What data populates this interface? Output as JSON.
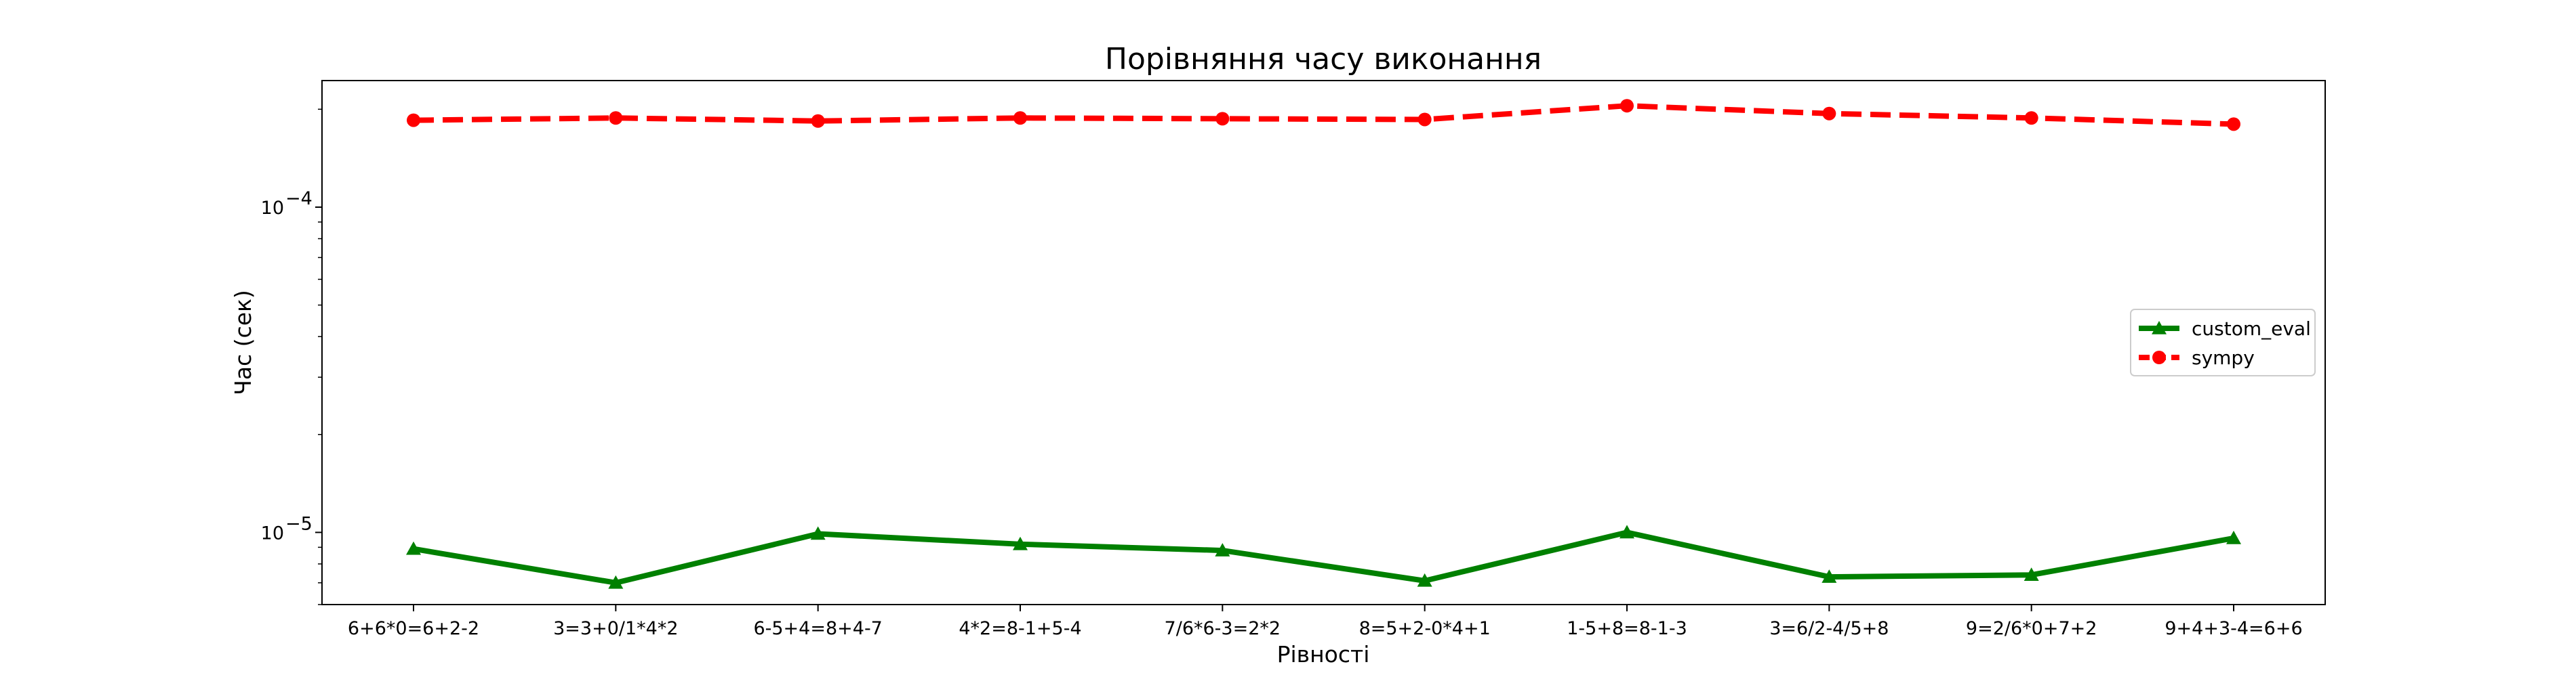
{
  "chart_data": {
    "type": "line",
    "title": "Порівняння часу виконання",
    "xlabel": "Рівності",
    "ylabel": "Час (сек)",
    "yscale": "log",
    "ylim": [
      6e-06,
      0.000245
    ],
    "grid": false,
    "legend_position": "center-right",
    "categories": [
      "6+6*0=6+2-2",
      "3=3+0/1*4*2",
      "6-5+4=8+4-7",
      "4*2=8-1+5-4",
      "7/6*6-3=2*2",
      "8=5+2-0*4+1",
      "1-5+8=8-1-3",
      "3=6/2-4/5+8",
      "9=2/6*0+7+2",
      "9+4+3-4=6+6"
    ],
    "y_ticks": [
      {
        "value": 1e-05,
        "base": "10",
        "exp": "−5"
      },
      {
        "value": 0.0001,
        "base": "10",
        "exp": "−4"
      }
    ],
    "series": [
      {
        "name": "custom_eval",
        "color": "#008000",
        "linestyle": "solid",
        "marker": "triangle",
        "values": [
          8.9e-06,
          7e-06,
          9.9e-06,
          9.2e-06,
          8.8e-06,
          7.1e-06,
          1e-05,
          7.3e-06,
          7.4e-06,
          9.6e-06
        ]
      },
      {
        "name": "sympy",
        "color": "#ff0000",
        "linestyle": "dashed",
        "marker": "circle",
        "values": [
          0.000185,
          0.000188,
          0.000184,
          0.000188,
          0.000187,
          0.000186,
          0.000205,
          0.000194,
          0.000188,
          0.00018
        ]
      }
    ]
  }
}
